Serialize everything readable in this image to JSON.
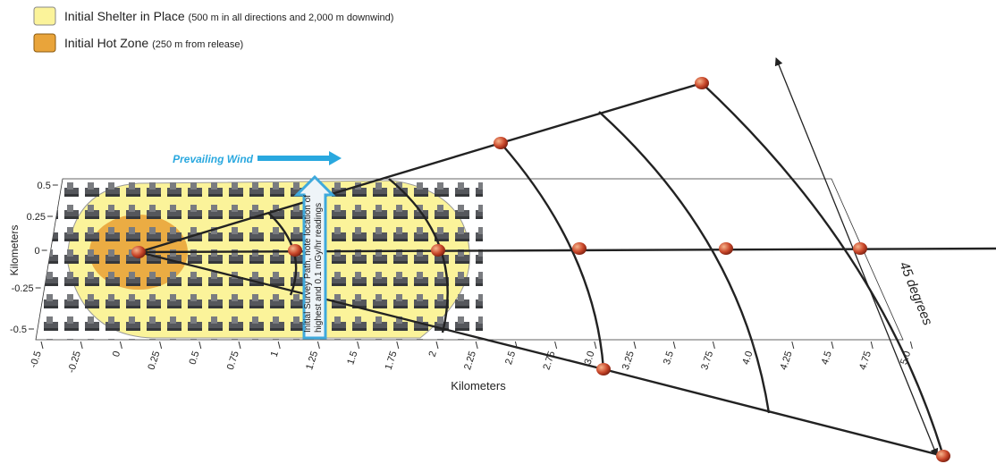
{
  "legend": [
    {
      "label": "Initial Shelter in Place",
      "note": "(500 m in all directions and 2,000 m downwind)"
    },
    {
      "label": "Initial Hot Zone",
      "note": "(250 m from release)"
    }
  ],
  "wind_label": "Prevailing Wind",
  "survey_label": [
    "Initial Survey Path, note location of",
    "highest and 0.1 mGy/hr readings"
  ],
  "angle_label": "45 degrees",
  "y_axis": {
    "title": "Kilometers",
    "ticks": [
      "0.5",
      "0.25",
      "0",
      "-0.25",
      "-0.5"
    ]
  },
  "x_axis": {
    "title": "Kilometers",
    "ticks": [
      "-0.5",
      "-0.25",
      "0",
      "0.25",
      "0.5",
      "0.75",
      "1",
      "1.25",
      "1.5",
      "1.75",
      "2",
      "2.25",
      "2.5",
      "2.75",
      "3.0",
      "3.25",
      "3.5",
      "3.75",
      "4.0",
      "4.25",
      "4.5",
      "4.75",
      "5.0"
    ]
  }
}
